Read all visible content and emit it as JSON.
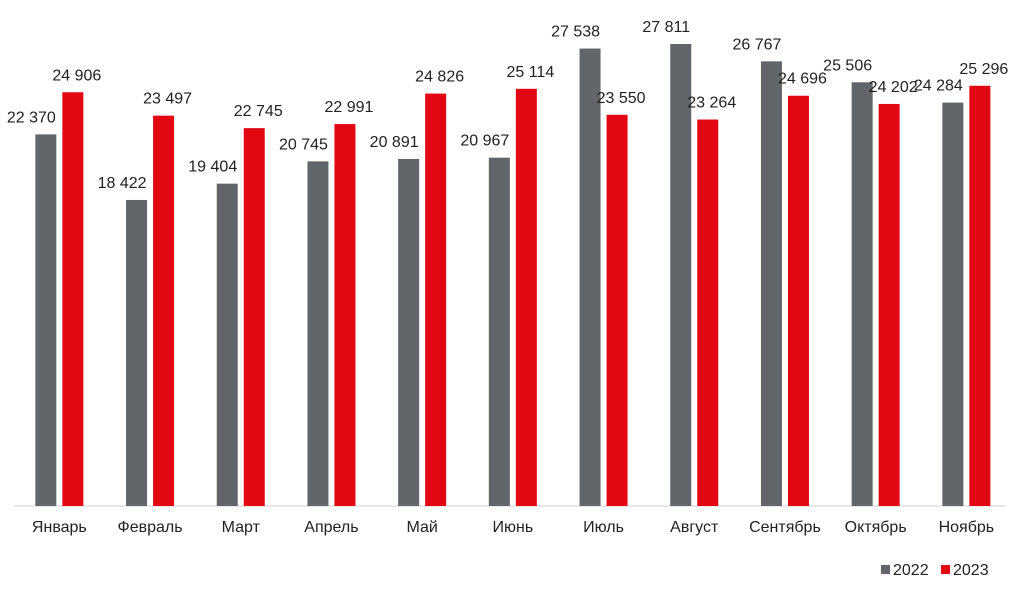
{
  "chart_data": {
    "type": "bar",
    "title": "",
    "xlabel": "",
    "ylabel": "",
    "ylim": [
      0,
      29000
    ],
    "grid": false,
    "legend_position": "bottom-right",
    "categories": [
      "Январь",
      "Февраль",
      "Март",
      "Апрель",
      "Май",
      "Июнь",
      "Июль",
      "Август",
      "Сентябрь",
      "Октябрь",
      "Ноябрь"
    ],
    "series": [
      {
        "name": "2022",
        "color": "#626569",
        "values": [
          22370,
          18422,
          19404,
          20745,
          20891,
          20967,
          27538,
          27811,
          26767,
          25506,
          24284
        ],
        "labels": [
          "22 370",
          "18 422",
          "19 404",
          "20 745",
          "20 891",
          "20 967",
          "27 538",
          "27 811",
          "26 767",
          "25 506",
          "24 284"
        ]
      },
      {
        "name": "2023",
        "color": "#e30613",
        "values": [
          24906,
          23497,
          22745,
          22991,
          24826,
          25114,
          23550,
          23264,
          24696,
          24202,
          25296
        ],
        "labels": [
          "24 906",
          "23 497",
          "22 745",
          "22 991",
          "24 826",
          "25 114",
          "23 550",
          "23 264",
          "24 696",
          "24 202",
          "25 296"
        ]
      }
    ]
  }
}
